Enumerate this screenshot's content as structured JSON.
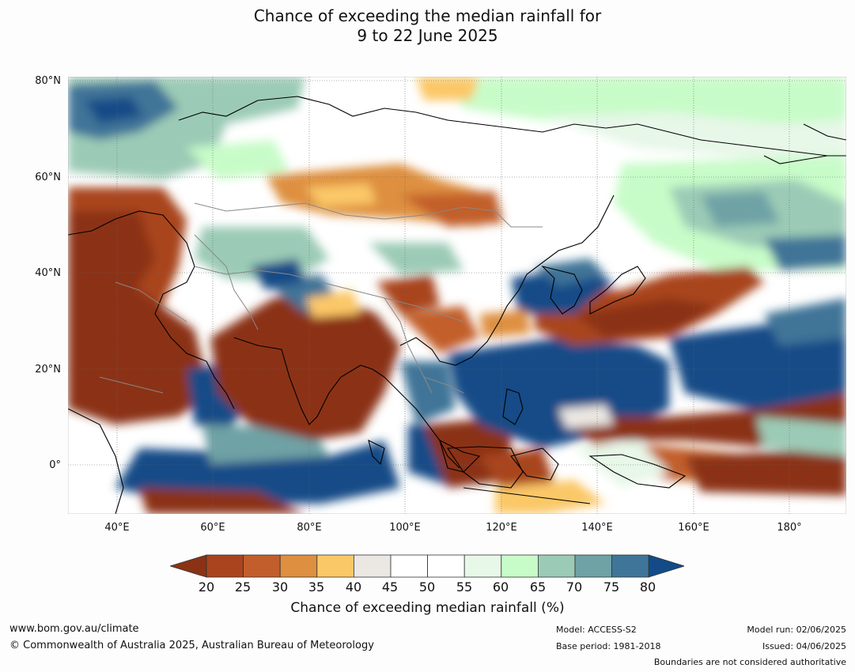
{
  "title": {
    "line1": "Chance of exceeding the median rainfall for",
    "line2": "9 to 22 June 2025"
  },
  "map": {
    "lat_labels": [
      "80°N",
      "60°N",
      "40°N",
      "20°N",
      "0°"
    ],
    "lon_labels": [
      "40°E",
      "60°E",
      "80°E",
      "100°E",
      "120°E",
      "140°E",
      "160°E",
      "180°"
    ],
    "colors": {
      "dark_brown": "#8b3214",
      "brown": "#a9441f",
      "orange_brown": "#c25e2c",
      "orange": "#de9040",
      "light_orange": "#fbc867",
      "grey": "#ebe7e2",
      "white": "#ffffff",
      "pale_green": "#e7f7e8",
      "light_green": "#c7fcc8",
      "green": "#9bcbb6",
      "teal": "#6ea2a5",
      "blue": "#3f7598",
      "dark_blue": "#124b87"
    }
  },
  "colorbar": {
    "ticks": [
      "20",
      "25",
      "30",
      "35",
      "40",
      "45",
      "50",
      "55",
      "60",
      "65",
      "70",
      "75",
      "80"
    ],
    "label": "Chance of exceeding median rainfall (%)"
  },
  "footer": {
    "url": "www.bom.gov.au/climate",
    "copyright": "© Commonwealth of Australia 2025, Australian Bureau of Meteorology",
    "model": "Model: ACCESS-S2",
    "base_period": "Base period: 1981-2018",
    "model_run": "Model run: 02/06/2025",
    "issued": "Issued: 04/06/2025",
    "disclaimer": "Boundaries are not considered authoritative"
  }
}
